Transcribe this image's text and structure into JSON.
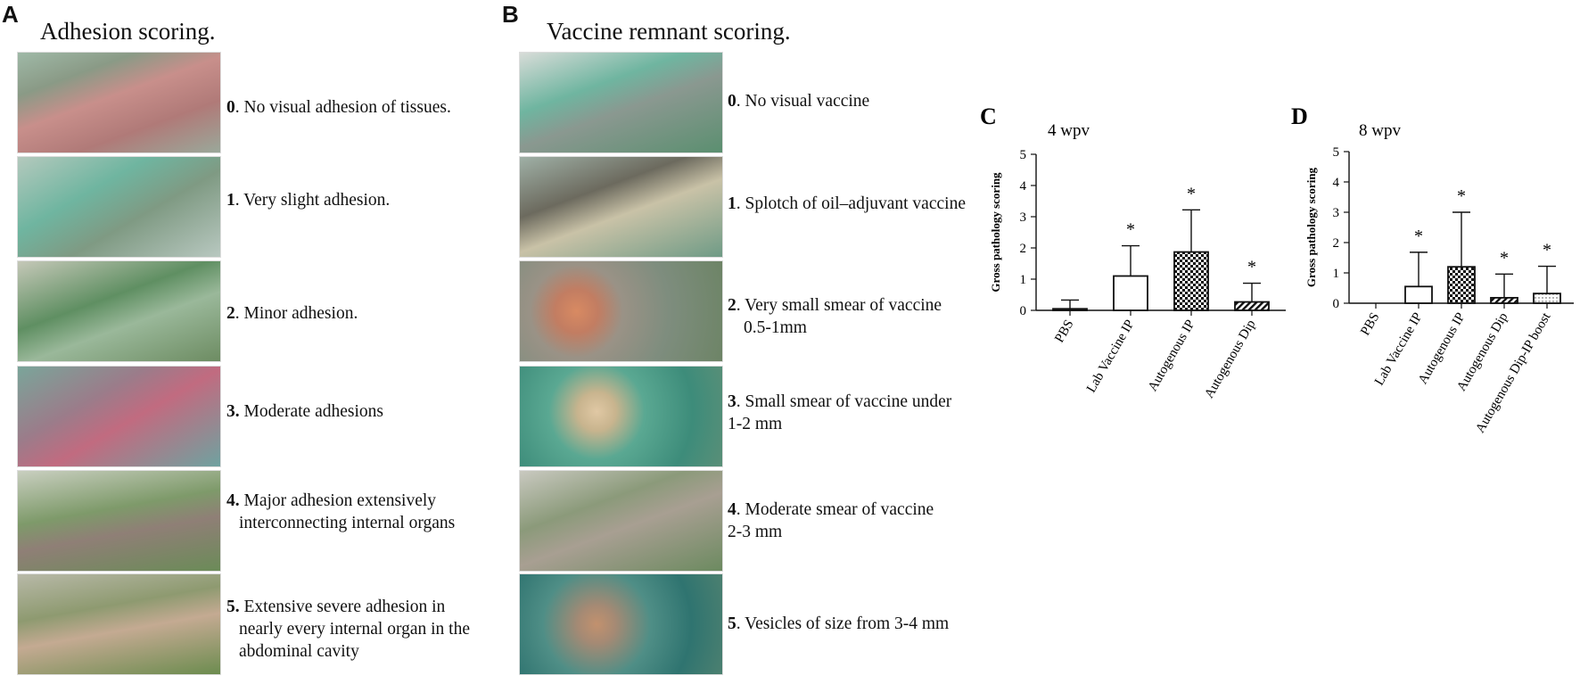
{
  "panels": {
    "a": {
      "letter": "A",
      "title": "Adhesion scoring.",
      "items": [
        {
          "num": "0",
          "sep": ".",
          "line1": " No visual adhesion of tissues.",
          "rest": ""
        },
        {
          "num": "1",
          "sep": ".",
          "line1": " Very slight adhesion.",
          "rest": ""
        },
        {
          "num": "2",
          "sep": ".",
          "line1": " Minor adhesion.",
          "rest": ""
        },
        {
          "num": "3.",
          "sep": "",
          "line1": " Moderate adhesions",
          "rest": ""
        },
        {
          "num": "4.",
          "sep": "",
          "line1": " Major adhesion extensively",
          "rest": "interconnecting internal organs"
        },
        {
          "num": "5.",
          "sep": "",
          "line1": " Extensive severe adhesion in",
          "rest": "nearly every internal organ in the abdominal cavity"
        }
      ]
    },
    "b": {
      "letter": "B",
      "title": "Vaccine remnant scoring.",
      "items": [
        {
          "num": "0",
          "sep": ".",
          "line1": " No visual vaccine",
          "rest": ""
        },
        {
          "num": "1",
          "sep": ".",
          "line1": " Splotch of oil–adjuvant vaccine",
          "rest": ""
        },
        {
          "num": "2",
          "sep": ".",
          "line1": " Very small smear of vaccine",
          "rest": "0.5-1mm"
        },
        {
          "num": "3",
          "sep": ".",
          "line1": " Small smear of vaccine under",
          "rest": "1-2 mm"
        },
        {
          "num": "4",
          "sep": ".",
          "line1": " Moderate smear of vaccine",
          "rest": "2-3 mm"
        },
        {
          "num": "5",
          "sep": ".",
          "line1": " Vesicles of size from 3-4 mm",
          "rest": ""
        }
      ]
    }
  },
  "colors": {
    "fish_green": "#5f8f62",
    "fish_teal": "#6fb5a0",
    "tissue_pink": "#c88f8b",
    "gloves": "#a9b8b6"
  },
  "chart_data": [
    {
      "letter": "C",
      "type": "bar",
      "title": "4 wpv",
      "xlabel": "",
      "ylabel": "Gross pathology scoring",
      "ylim": [
        0,
        5
      ],
      "yticks": [
        "0",
        "1",
        "2",
        "3",
        "4",
        "5"
      ],
      "categories": [
        "PBS",
        "Lab Vaccine IP",
        "Autogenous IP",
        "Autogenous Dip"
      ],
      "values": [
        0.05,
        1.1,
        1.87,
        0.27
      ],
      "error": [
        0.28,
        0.97,
        1.35,
        0.6
      ],
      "significance": [
        "",
        "*",
        "*",
        "*"
      ],
      "patterns": [
        "none",
        "none",
        "checker",
        "diagonal"
      ]
    },
    {
      "letter": "D",
      "type": "bar",
      "title": "8 wpv",
      "xlabel": "",
      "ylabel": "Gross pathology scoring",
      "ylim": [
        0,
        5
      ],
      "yticks": [
        "0",
        "1",
        "2",
        "3",
        "4",
        "5"
      ],
      "categories": [
        "PBS",
        "Lab Vaccine IP",
        "Autogenous IP",
        "Autogenous Dip",
        "Autogenous Dip-IP boost"
      ],
      "values": [
        0,
        0.55,
        1.2,
        0.18,
        0.32
      ],
      "error": [
        0,
        1.13,
        1.8,
        0.78,
        0.9
      ],
      "significance": [
        "",
        "*",
        "*",
        "*",
        "*"
      ],
      "patterns": [
        "none",
        "none",
        "checker",
        "diagonal",
        "dots"
      ]
    }
  ]
}
